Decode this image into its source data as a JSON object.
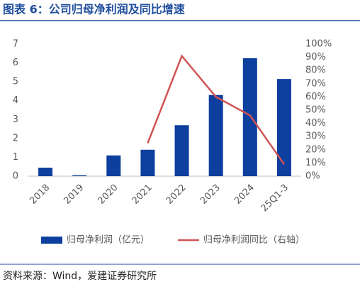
{
  "chart_data": {
    "type": "bar-line",
    "title": "图表 6：公司归母净利润及同比增速",
    "source": "资料来源：Wind，爱建证券研究所",
    "categories": [
      "2018",
      "2019",
      "2020",
      "2021",
      "2022",
      "2023",
      "2024",
      "25Q1-3"
    ],
    "series": [
      {
        "name": "归母净利润（亿元）",
        "type": "bar",
        "color": "#0d3f9f",
        "values": [
          0.45,
          0.05,
          1.1,
          1.4,
          2.7,
          4.3,
          6.25,
          5.15
        ]
      },
      {
        "name": "归母净利润同比（右轴）",
        "type": "line",
        "axis": "y2",
        "color": "#d05353",
        "values": [
          null,
          null,
          null,
          25,
          91,
          60,
          46,
          9
        ]
      }
    ],
    "ylim": [
      0,
      7
    ],
    "yticks": [
      0,
      1,
      2,
      3,
      4,
      5,
      6,
      7
    ],
    "y2lim": [
      0,
      100
    ],
    "y2ticks": [
      {
        "value": 0,
        "label": "0%"
      },
      {
        "value": 10,
        "label": "10%"
      },
      {
        "value": 20,
        "label": "20%"
      },
      {
        "value": 30,
        "label": "30%"
      },
      {
        "value": 40,
        "label": "40%"
      },
      {
        "value": 50,
        "label": "50%"
      },
      {
        "value": 60,
        "label": "60%"
      },
      {
        "value": 70,
        "label": "70%"
      },
      {
        "value": 80,
        "label": "80%"
      },
      {
        "value": 90,
        "label": "90%"
      },
      {
        "value": 100,
        "label": "100%"
      }
    ],
    "legend": "bottom"
  }
}
